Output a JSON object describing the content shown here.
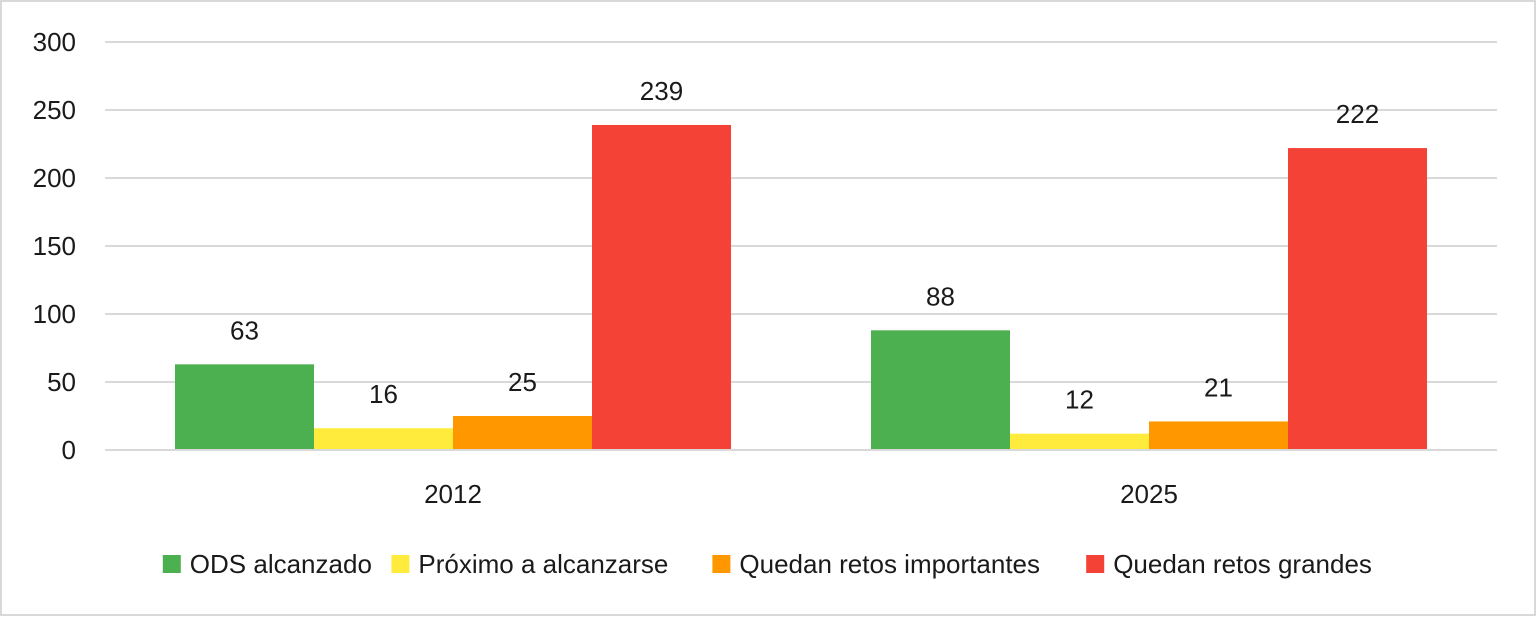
{
  "chart_data": {
    "type": "bar",
    "title": "",
    "xlabel": "",
    "ylabel": "",
    "categories": [
      "2012",
      "2025"
    ],
    "ylim": [
      0,
      300
    ],
    "yticks": [
      0,
      50,
      100,
      150,
      200,
      250,
      300
    ],
    "grid": true,
    "legend_position": "bottom",
    "data_labels": true,
    "series": [
      {
        "name": "ODS alcanzado",
        "color": "#4cb050",
        "values": [
          63,
          88
        ]
      },
      {
        "name": "Próximo a alcanzarse",
        "color": "#ffeb3b",
        "values": [
          16,
          12
        ]
      },
      {
        "name": "Quedan retos importantes",
        "color": "#ff9800",
        "values": [
          25,
          21
        ]
      },
      {
        "name": "Quedan retos grandes",
        "color": "#f44336",
        "values": [
          239,
          222
        ]
      }
    ]
  }
}
